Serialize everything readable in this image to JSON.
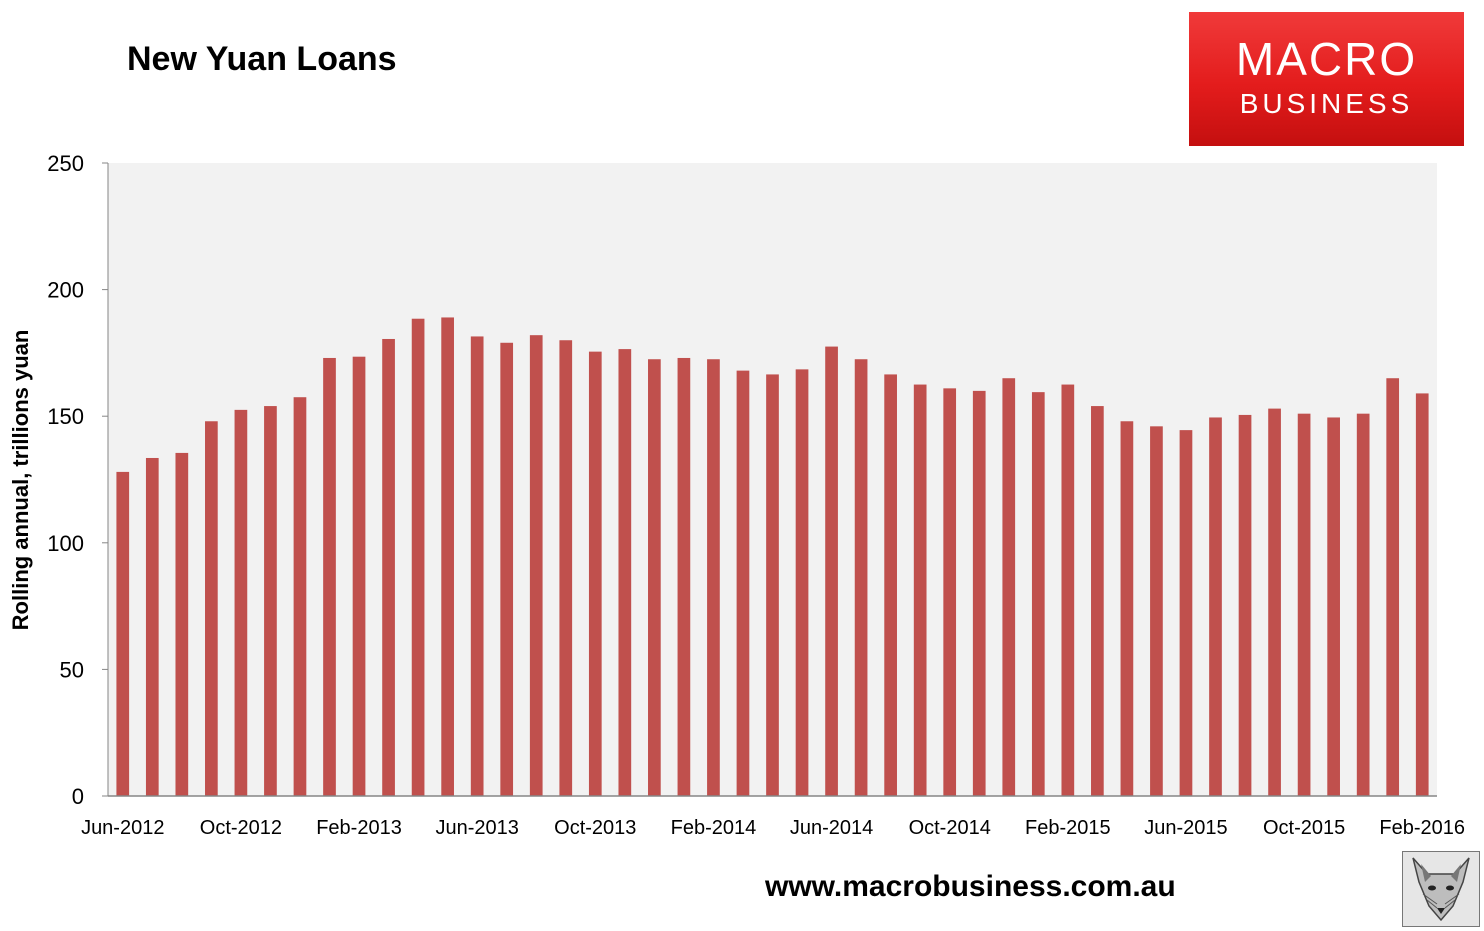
{
  "title": "New Yuan Loans",
  "logo": {
    "line1": "MACRO",
    "line2": "BUSINESS"
  },
  "footer_url": "www.macrobusiness.com.au",
  "colors": {
    "bar": "#c0504d",
    "plot_bg": "#f2f2f2",
    "logo_red": "#e31c1c"
  },
  "chart_data": {
    "type": "bar",
    "ylabel": "Rolling annual, trillions yuan",
    "ylim": [
      0,
      250
    ],
    "yticks": [
      0,
      50,
      100,
      150,
      200,
      250
    ],
    "xtick_labels": [
      "Jun-2012",
      "Oct-2012",
      "Feb-2013",
      "Jun-2013",
      "Oct-2013",
      "Feb-2014",
      "Jun-2014",
      "Oct-2014",
      "Feb-2015",
      "Jun-2015",
      "Oct-2015",
      "Feb-2016"
    ],
    "categories": [
      "Jun-2012",
      "Jul-2012",
      "Aug-2012",
      "Sep-2012",
      "Oct-2012",
      "Nov-2012",
      "Dec-2012",
      "Jan-2013",
      "Feb-2013",
      "Mar-2013",
      "Apr-2013",
      "May-2013",
      "Jun-2013",
      "Jul-2013",
      "Aug-2013",
      "Sep-2013",
      "Oct-2013",
      "Nov-2013",
      "Dec-2013",
      "Jan-2014",
      "Feb-2014",
      "Mar-2014",
      "Apr-2014",
      "May-2014",
      "Jun-2014",
      "Jul-2014",
      "Aug-2014",
      "Sep-2014",
      "Oct-2014",
      "Nov-2014",
      "Dec-2014",
      "Jan-2015",
      "Feb-2015",
      "Mar-2015",
      "Apr-2015",
      "May-2015",
      "Jun-2015",
      "Jul-2015",
      "Aug-2015",
      "Sep-2015",
      "Oct-2015",
      "Nov-2015",
      "Dec-2015",
      "Jan-2016",
      "Feb-2016"
    ],
    "values": [
      128,
      133.5,
      135.5,
      148,
      152.5,
      154,
      157.5,
      173,
      173.5,
      180.5,
      188.5,
      189,
      181.5,
      179,
      182,
      180,
      175.5,
      176.5,
      172.5,
      173,
      172.5,
      168,
      166.5,
      168.5,
      177.5,
      172.5,
      166.5,
      162.5,
      161,
      160,
      165,
      159.5,
      162.5,
      154,
      148,
      146,
      144.5,
      149.5,
      150.5,
      153,
      151,
      149.5,
      151,
      165,
      159
    ],
    "grid": false,
    "legend": "none"
  }
}
